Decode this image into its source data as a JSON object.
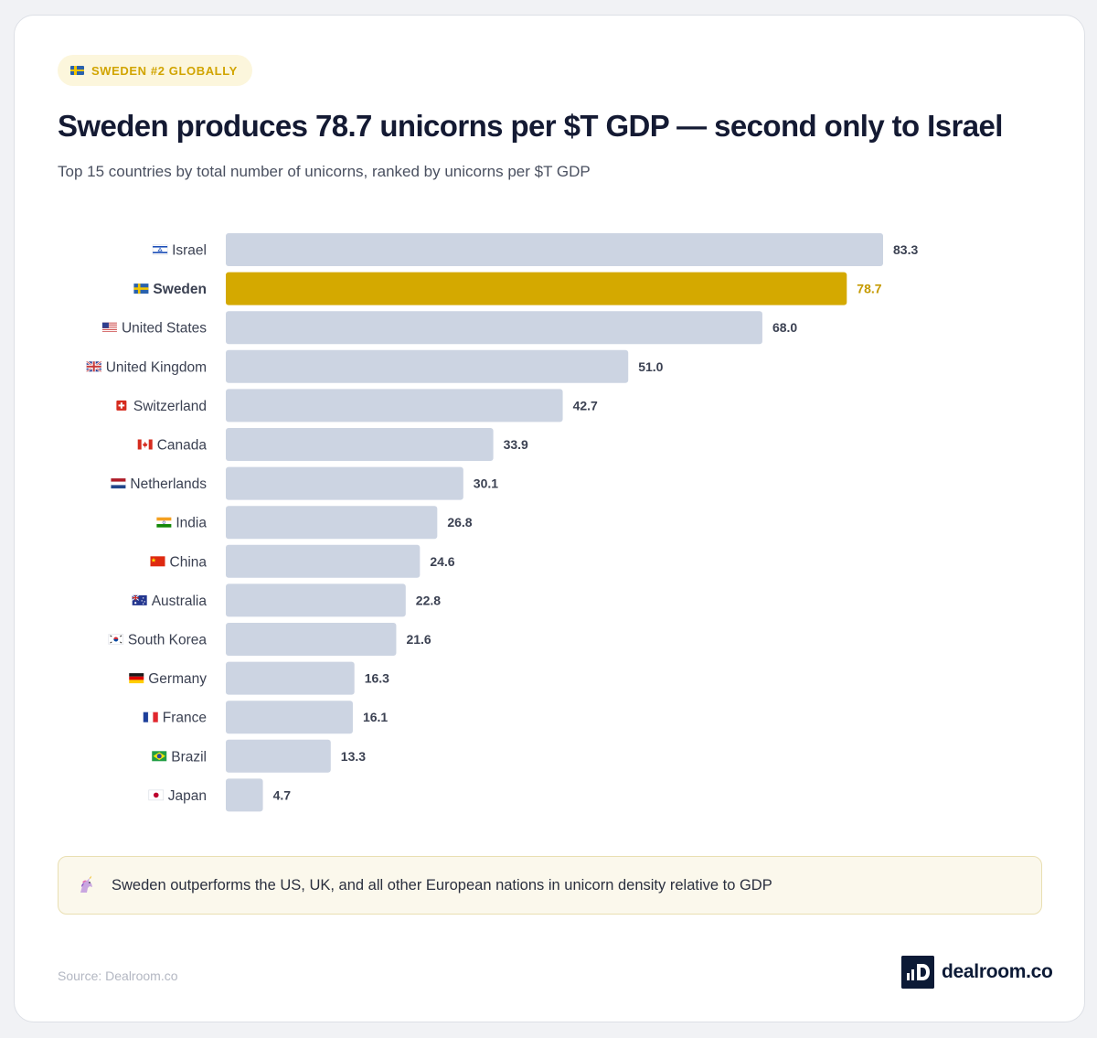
{
  "badge": {
    "text": "SWEDEN #2 GLOBALLY",
    "flag_icon": "sweden-flag-icon"
  },
  "title": "Sweden produces 78.7 unicorns per $T GDP — second only to Israel",
  "subtitle": "Top 15 countries by total number of unicorns, ranked by unicorns per $T GDP",
  "colors": {
    "highlight": "#d4a900",
    "highlight_label": "#c59a00",
    "bar": "#ccd4e2",
    "label": "#3b4152",
    "value": "#3b4152"
  },
  "chart_data": {
    "type": "bar",
    "orientation": "horizontal",
    "title": "Sweden produces 78.7 unicorns per $T GDP — second only to Israel",
    "xlabel": "",
    "ylabel": "",
    "xlim": [
      0,
      83.3
    ],
    "grid": false,
    "legend": "none",
    "highlight": "Sweden",
    "categories": [
      "Israel",
      "Sweden",
      "United States",
      "United Kingdom",
      "Switzerland",
      "Canada",
      "Netherlands",
      "India",
      "China",
      "Australia",
      "South Korea",
      "Germany",
      "France",
      "Brazil",
      "Japan"
    ],
    "flags": [
      "il",
      "se",
      "us",
      "gb",
      "ch",
      "ca",
      "nl",
      "in",
      "cn",
      "au",
      "kr",
      "de",
      "fr",
      "br",
      "jp"
    ],
    "values": [
      83.3,
      78.7,
      68.0,
      51.0,
      42.7,
      33.9,
      30.1,
      26.8,
      24.6,
      22.8,
      21.6,
      16.3,
      16.1,
      13.3,
      4.7
    ]
  },
  "callout": {
    "icon": "unicorn-icon",
    "text": "Sweden outperforms the US, UK, and all other European nations in unicorn density relative to GDP"
  },
  "source": "Source: Dealroom.co",
  "logo": {
    "text": "dealroom.co"
  }
}
